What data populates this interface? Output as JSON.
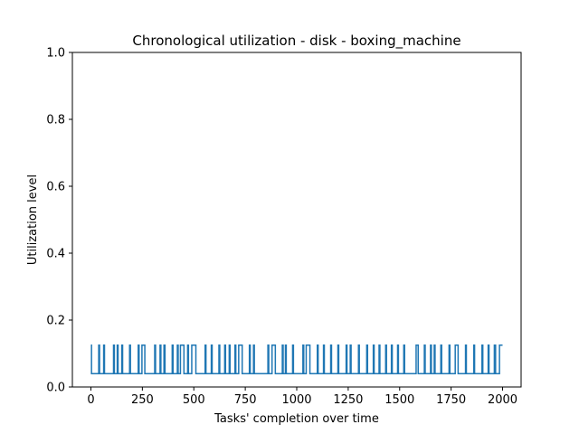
{
  "chart_data": {
    "type": "line",
    "title": "Chronological utilization - disk - boxing_machine",
    "xlabel": "Tasks' completion over time",
    "ylabel": "Utilization level",
    "xlim": [
      -90,
      2090
    ],
    "ylim": [
      0.0,
      1.0
    ],
    "xticks": [
      0,
      250,
      500,
      750,
      1000,
      1250,
      1500,
      1750,
      2000
    ],
    "xtick_labels": [
      "0",
      "250",
      "500",
      "750",
      "1000",
      "1250",
      "1500",
      "1750",
      "2000"
    ],
    "yticks": [
      0.0,
      0.2,
      0.4,
      0.6,
      0.8,
      1.0
    ],
    "ytick_labels": [
      "0.0",
      "0.2",
      "0.4",
      "0.6",
      "0.8",
      "1.0"
    ],
    "grid": false,
    "series": [
      {
        "color": "#1f77b4",
        "levels": [
          0.04,
          0.125
        ],
        "x_range": [
          0,
          2000
        ],
        "description": "rapidly alternates between levels",
        "low_intervals": [
          [
            3,
            38
          ],
          [
            42,
            62
          ],
          [
            66,
            110
          ],
          [
            114,
            128
          ],
          [
            132,
            150
          ],
          [
            154,
            188
          ],
          [
            192,
            230
          ],
          [
            234,
            248
          ],
          [
            262,
            310
          ],
          [
            314,
            336
          ],
          [
            340,
            355
          ],
          [
            360,
            395
          ],
          [
            399,
            420
          ],
          [
            424,
            435
          ],
          [
            452,
            470
          ],
          [
            474,
            490
          ],
          [
            510,
            555
          ],
          [
            559,
            585
          ],
          [
            589,
            622
          ],
          [
            626,
            650
          ],
          [
            654,
            672
          ],
          [
            676,
            700
          ],
          [
            704,
            718
          ],
          [
            735,
            770
          ],
          [
            774,
            790
          ],
          [
            794,
            860
          ],
          [
            864,
            880
          ],
          [
            896,
            930
          ],
          [
            934,
            945
          ],
          [
            949,
            980
          ],
          [
            984,
            1030
          ],
          [
            1034,
            1046
          ],
          [
            1064,
            1100
          ],
          [
            1104,
            1130
          ],
          [
            1134,
            1165
          ],
          [
            1169,
            1200
          ],
          [
            1204,
            1240
          ],
          [
            1244,
            1260
          ],
          [
            1264,
            1300
          ],
          [
            1304,
            1340
          ],
          [
            1344,
            1372
          ],
          [
            1376,
            1400
          ],
          [
            1404,
            1432
          ],
          [
            1436,
            1460
          ],
          [
            1464,
            1490
          ],
          [
            1494,
            1520
          ],
          [
            1524,
            1580
          ],
          [
            1590,
            1620
          ],
          [
            1624,
            1650
          ],
          [
            1654,
            1668
          ],
          [
            1672,
            1700
          ],
          [
            1704,
            1740
          ],
          [
            1744,
            1770
          ],
          [
            1784,
            1820
          ],
          [
            1824,
            1860
          ],
          [
            1864,
            1900
          ],
          [
            1904,
            1930
          ],
          [
            1934,
            1960
          ],
          [
            1966,
            1985
          ]
        ]
      }
    ]
  }
}
